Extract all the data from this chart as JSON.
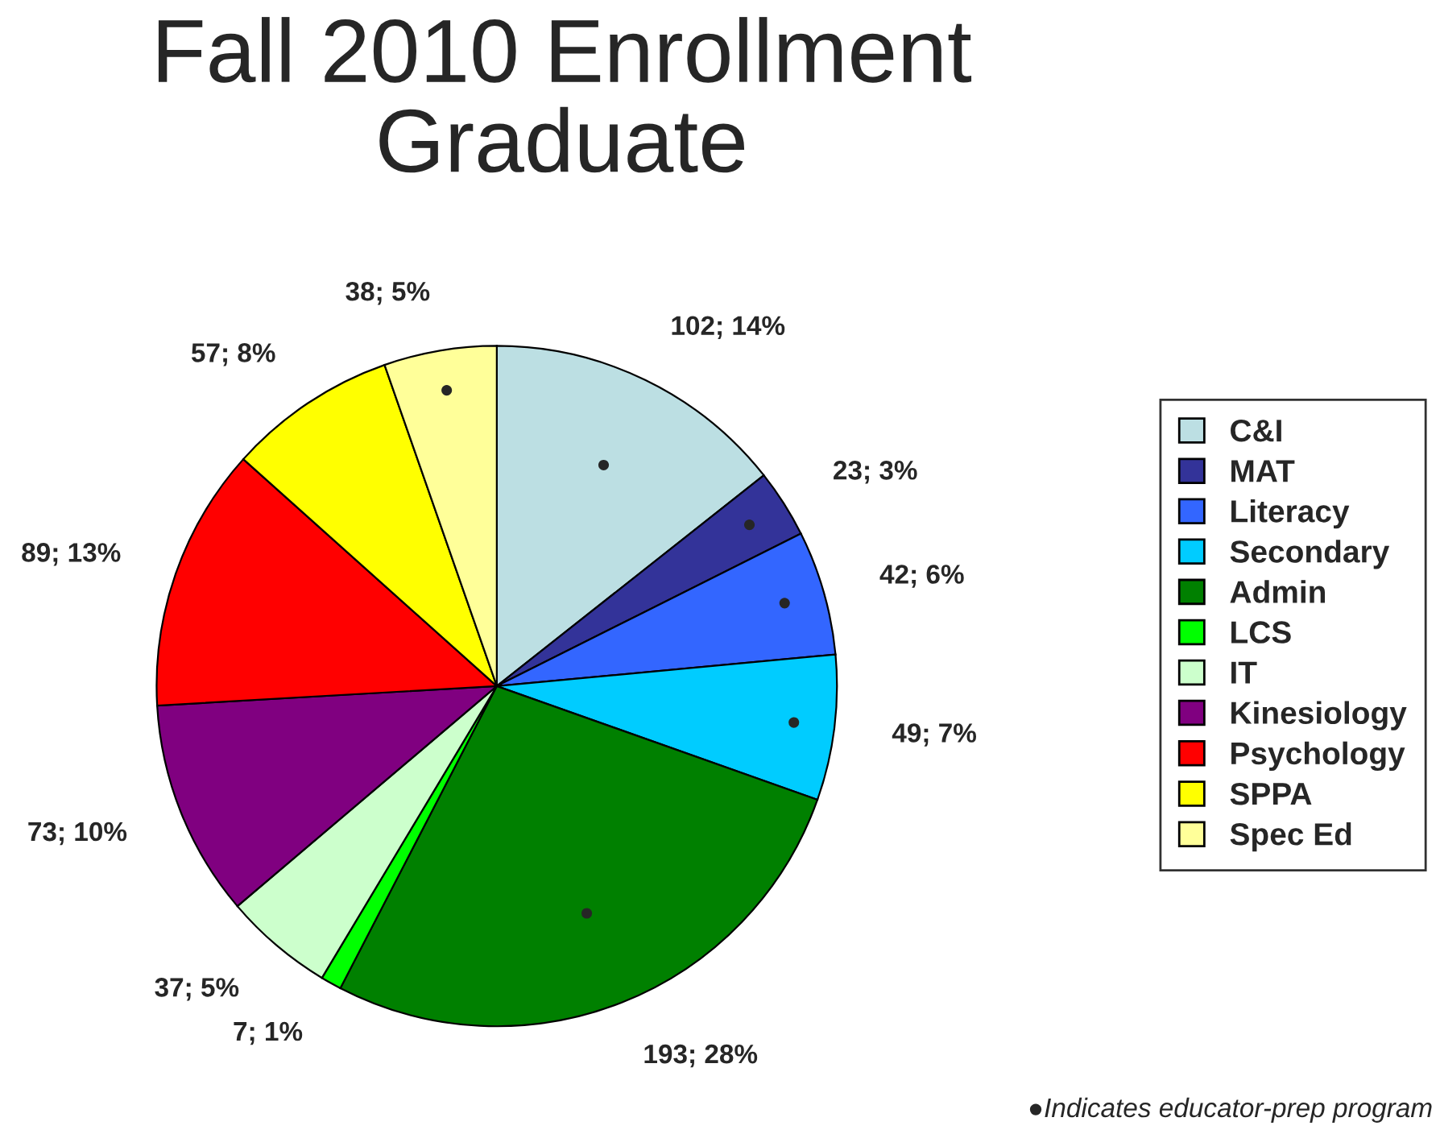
{
  "chart_data": {
    "type": "pie",
    "title": "Fall 2010 Enrollment\nGraduate",
    "categories": [
      "C&I",
      "MAT",
      "Literacy",
      "Secondary",
      "Admin",
      "LCS",
      "IT",
      "Kinesiology",
      "Psychology",
      "SPPA",
      "Spec Ed"
    ],
    "values": [
      102,
      23,
      42,
      49,
      193,
      7,
      37,
      73,
      89,
      57,
      38
    ],
    "value_labels": [
      "102; 14%",
      "23; 3%",
      "42; 6%",
      "49; 7%",
      "193; 28%",
      "7; 1%",
      "37; 5%",
      "73; 10%",
      "89; 13%",
      "57; 8%",
      "38; 5%"
    ],
    "colors": [
      "#bcdfe3",
      "#333399",
      "#3366ff",
      "#00ccff",
      "#008000",
      "#00ff00",
      "#ccffcc",
      "#800080",
      "#ff0000",
      "#ffff00",
      "#ffff99"
    ],
    "legend": "right",
    "annotations": [
      {
        "text": "●",
        "x": "C&I"
      },
      {
        "text": "●",
        "x": "MAT"
      },
      {
        "text": "●",
        "x": "Literacy"
      },
      {
        "text": "●",
        "x": "Secondary"
      },
      {
        "text": "●",
        "x": "Admin"
      },
      {
        "text": "●",
        "x": "Spec Ed"
      },
      "●Indicates educator-prep program"
    ]
  }
}
